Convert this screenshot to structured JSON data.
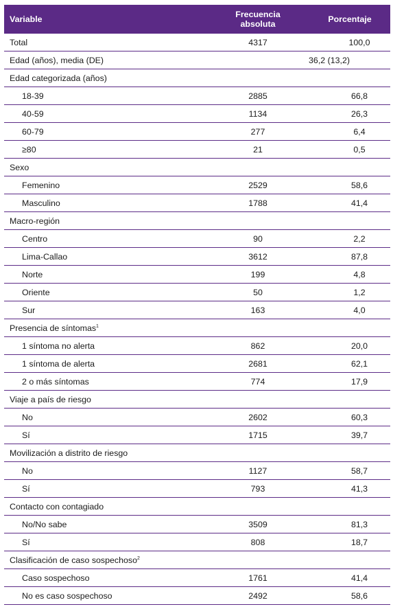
{
  "table": {
    "headers": [
      "Variable",
      "Frecuencia absoluta",
      "Porcentaje"
    ],
    "rows": [
      {
        "type": "row",
        "label": "Total",
        "freq": "4317",
        "pct": "100,0"
      },
      {
        "type": "span",
        "label": "Edad (años), media (DE)",
        "value": "36,2 (13,2)"
      },
      {
        "type": "group",
        "label": "Edad categorizada (años)"
      },
      {
        "type": "sub",
        "label": "18-39",
        "freq": "2885",
        "pct": "66,8"
      },
      {
        "type": "sub",
        "label": "40-59",
        "freq": "1134",
        "pct": "26,3"
      },
      {
        "type": "sub",
        "label": "60-79",
        "freq": "277",
        "pct": "6,4"
      },
      {
        "type": "sub",
        "label": "≥80",
        "freq": "21",
        "pct": "0,5"
      },
      {
        "type": "group",
        "label": "Sexo"
      },
      {
        "type": "sub",
        "label": "Femenino",
        "freq": "2529",
        "pct": "58,6"
      },
      {
        "type": "sub",
        "label": "Masculino",
        "freq": "1788",
        "pct": "41,4"
      },
      {
        "type": "group",
        "label": "Macro-región"
      },
      {
        "type": "sub",
        "label": "Centro",
        "freq": "90",
        "pct": "2,2"
      },
      {
        "type": "sub",
        "label": "Lima-Callao",
        "freq": "3612",
        "pct": "87,8"
      },
      {
        "type": "sub",
        "label": "Norte",
        "freq": "199",
        "pct": "4,8"
      },
      {
        "type": "sub",
        "label": "Oriente",
        "freq": "50",
        "pct": "1,2"
      },
      {
        "type": "sub",
        "label": "Sur",
        "freq": "163",
        "pct": "4,0"
      },
      {
        "type": "group",
        "label": "Presencia de síntomas",
        "sup": "1"
      },
      {
        "type": "sub",
        "label": "1 síntoma no alerta",
        "freq": "862",
        "pct": "20,0"
      },
      {
        "type": "sub",
        "label": "1 síntoma de alerta",
        "freq": "2681",
        "pct": "62,1"
      },
      {
        "type": "sub",
        "label": "2 o más síntomas",
        "freq": "774",
        "pct": "17,9"
      },
      {
        "type": "group",
        "label": "Viaje a país de riesgo"
      },
      {
        "type": "sub",
        "label": "No",
        "freq": "2602",
        "pct": "60,3"
      },
      {
        "type": "sub",
        "label": "Sí",
        "freq": "1715",
        "pct": "39,7"
      },
      {
        "type": "group",
        "label": "Movilización a distrito de riesgo"
      },
      {
        "type": "sub",
        "label": "No",
        "freq": "1127",
        "pct": "58,7"
      },
      {
        "type": "sub",
        "label": "Sí",
        "freq": "793",
        "pct": "41,3"
      },
      {
        "type": "group",
        "label": "Contacto con contagiado"
      },
      {
        "type": "sub",
        "label": "No/No sabe",
        "freq": "3509",
        "pct": "81,3"
      },
      {
        "type": "sub",
        "label": "Sí",
        "freq": "808",
        "pct": "18,7"
      },
      {
        "type": "group",
        "label": "Clasificación de caso sospechoso",
        "sup": "2"
      },
      {
        "type": "sub",
        "label": "Caso sospechoso",
        "freq": "1761",
        "pct": "41,4"
      },
      {
        "type": "sub",
        "label": "No es caso sospechoso",
        "freq": "2492",
        "pct": "58,6"
      }
    ]
  }
}
